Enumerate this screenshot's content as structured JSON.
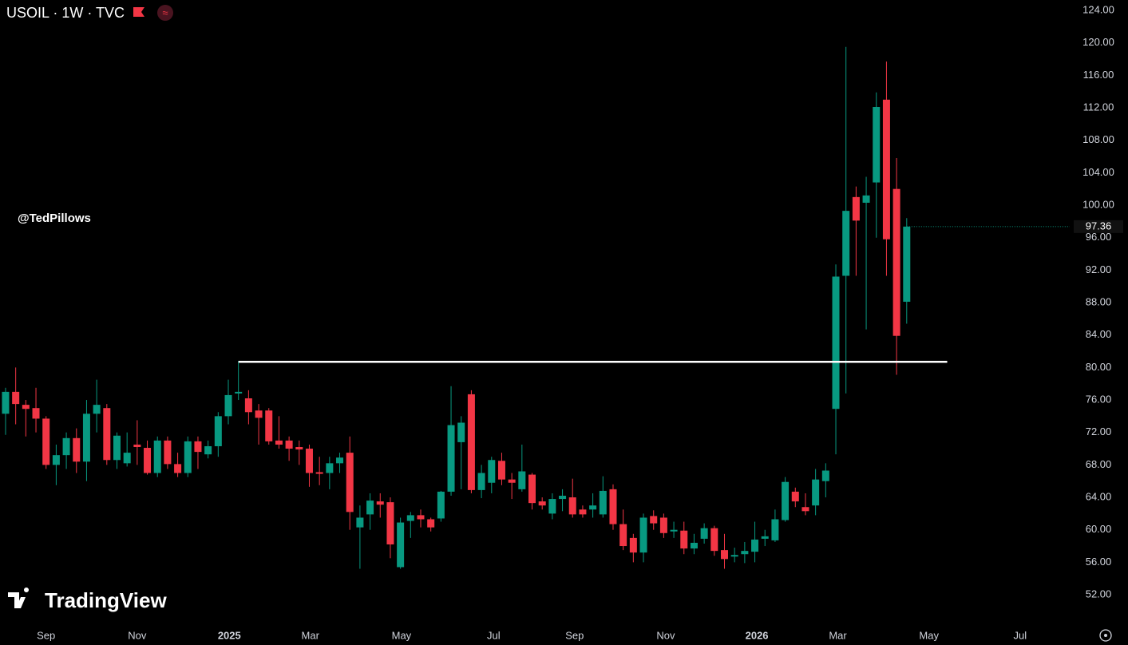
{
  "chart_data": {
    "type": "candlestick",
    "title": "USOIL · 1W · TVC",
    "annotation": "@TedPillows",
    "watermark": "TradingView",
    "up_color": "#089981",
    "down_color": "#f23645",
    "open": [
      74.3,
      77,
      75.4,
      75,
      73.7,
      68,
      69.2,
      71.3,
      68.4,
      74.3,
      75,
      68.6,
      68.2,
      70.5,
      70.1,
      67,
      71,
      68.1,
      67,
      70.9,
      69.3,
      70.3,
      74,
      76.8,
      76.2,
      74.7,
      74.7,
      71,
      71,
      70.2,
      70,
      67.1,
      67,
      68.2,
      69.5,
      60.3,
      61.9,
      63.5,
      63.4,
      55.4,
      61.1,
      61.8,
      61.3,
      61.4,
      64.7,
      70.8,
      76.7,
      64.9,
      65.8,
      68.5,
      66.2,
      65,
      66.8,
      63.5,
      62,
      63.8,
      64,
      62.5,
      62.5,
      61.9,
      65,
      60.7,
      59,
      57.2,
      61.7,
      61.5,
      59.8,
      59.9,
      57.7,
      58.9,
      60.2,
      57.5,
      56.7,
      57,
      57.3,
      58.9,
      58.7,
      61.2,
      64.7,
      62.8,
      63,
      66,
      74.9,
      91.3,
      101,
      100.3,
      102.8,
      113,
      102,
      88.1
    ],
    "high": [
      77.5,
      80,
      76,
      77.5,
      74,
      70.5,
      72,
      72.5,
      76,
      78.5,
      75.5,
      72,
      72,
      73.5,
      71,
      71.5,
      71.5,
      69.5,
      71.5,
      71.5,
      71,
      74.5,
      78.5,
      80.8,
      77.2,
      75.5,
      75,
      74,
      71.5,
      71,
      70.5,
      69,
      69,
      69.5,
      71.5,
      63,
      64.5,
      64.5,
      64,
      61.5,
      62.2,
      62.5,
      61.5,
      64.8,
      77.7,
      74,
      77.2,
      68,
      69,
      69.5,
      67,
      70.5,
      67,
      64,
      64.5,
      65,
      66.3,
      63,
      64.5,
      66.6,
      65.6,
      62.5,
      59.5,
      62,
      62.4,
      62,
      61,
      61,
      59.5,
      60.8,
      60.5,
      59.5,
      57.8,
      58.5,
      61,
      60,
      62.5,
      66.5,
      65.2,
      64.5,
      67.5,
      68.2,
      92.7,
      119.5,
      102.3,
      103.5,
      113.9,
      117.7,
      105.8,
      98.4
    ],
    "low": [
      71.7,
      73,
      71.5,
      72,
      67.5,
      65.5,
      67.5,
      67,
      66,
      72,
      68,
      67.5,
      67.8,
      68,
      66.8,
      66.5,
      67.5,
      66.5,
      66.5,
      67.5,
      68.8,
      69,
      73,
      76,
      73,
      70.5,
      70.5,
      70,
      68.5,
      68,
      65.3,
      65.5,
      65,
      67,
      60,
      55.2,
      60,
      61.5,
      56.5,
      55.2,
      59,
      60.3,
      59.8,
      61,
      64.2,
      65,
      64.5,
      63.9,
      64.5,
      65.5,
      63.8,
      64.7,
      62.5,
      62.5,
      61.3,
      62.3,
      61.5,
      61.5,
      61.5,
      61.5,
      60,
      57.5,
      56,
      56,
      60,
      59,
      59,
      57,
      57,
      58.3,
      56.8,
      55.2,
      56,
      55.9,
      56,
      58,
      58.5,
      61,
      62.8,
      61.8,
      61.8,
      64,
      69.3,
      76.8,
      91.3,
      84.7,
      96,
      91.3,
      79.1,
      85.4
    ],
    "close": [
      77,
      75.5,
      74.9,
      73.7,
      68,
      69.2,
      71.3,
      68.4,
      74.3,
      75.4,
      68.6,
      71.6,
      69.5,
      70.2,
      67,
      71,
      68.1,
      67,
      70.9,
      69.6,
      70.3,
      74,
      76.6,
      77,
      74.5,
      73.8,
      70.9,
      70.5,
      70,
      69.9,
      67,
      66.9,
      68.2,
      68.9,
      62.2,
      61.5,
      63.6,
      63.1,
      58.2,
      60.9,
      61.8,
      61.3,
      60.3,
      64.7,
      72.9,
      73.2,
      64.9,
      67,
      68.6,
      66.2,
      65.8,
      67.2,
      63.3,
      63,
      63.8,
      64.2,
      61.9,
      61.9,
      63,
      64.8,
      60.7,
      58,
      57.2,
      61.5,
      60.8,
      59.6,
      60,
      57.7,
      58.4,
      60.2,
      57.4,
      56.4,
      56.9,
      57.4,
      58.8,
      59.2,
      61.3,
      65.9,
      63.5,
      62.3,
      66.2,
      67.3,
      91.2,
      99.3,
      98.1,
      101.2,
      112.1,
      95.8,
      83.9,
      97.36
    ],
    "last_price": 97.36,
    "level": {
      "value": 80.7,
      "from": 23,
      "to": 93
    },
    "ylim": [
      48.07,
      125.28
    ],
    "yticks": [
      {
        "value": 52,
        "label": "52.00"
      },
      {
        "value": 56,
        "label": "56.00"
      },
      {
        "value": 60,
        "label": "60.00"
      },
      {
        "value": 64,
        "label": "64.00"
      },
      {
        "value": 68,
        "label": "68.00"
      },
      {
        "value": 72,
        "label": "72.00"
      },
      {
        "value": 76,
        "label": "76.00"
      },
      {
        "value": 80,
        "label": "80.00"
      },
      {
        "value": 84,
        "label": "84.00"
      },
      {
        "value": 88,
        "label": "88.00"
      },
      {
        "value": 92,
        "label": "92.00"
      },
      {
        "value": 96,
        "label": "96.00"
      },
      {
        "value": 100,
        "label": "100.00"
      },
      {
        "value": 104,
        "label": "104.00"
      },
      {
        "value": 108,
        "label": "108.00"
      },
      {
        "value": 112,
        "label": "112.00"
      },
      {
        "value": 116,
        "label": "116.00"
      },
      {
        "value": 120,
        "label": "120.00"
      },
      {
        "value": 124,
        "label": "124.00"
      }
    ],
    "xlim": [
      -0.55,
      105.1
    ],
    "xticks": [
      {
        "value": 4.0,
        "label": "Sep"
      },
      {
        "value": 13.0,
        "label": "Nov"
      },
      {
        "value": 22.1,
        "label": "2025"
      },
      {
        "value": 30.1,
        "label": "Mar"
      },
      {
        "value": 39.1,
        "label": "May"
      },
      {
        "value": 48.2,
        "label": "Jul"
      },
      {
        "value": 56.2,
        "label": "Sep"
      },
      {
        "value": 65.2,
        "label": "Nov"
      },
      {
        "value": 74.2,
        "label": "2026"
      },
      {
        "value": 82.2,
        "label": "Mar"
      },
      {
        "value": 91.2,
        "label": "May"
      },
      {
        "value": 100.2,
        "label": "Jul"
      }
    ]
  }
}
